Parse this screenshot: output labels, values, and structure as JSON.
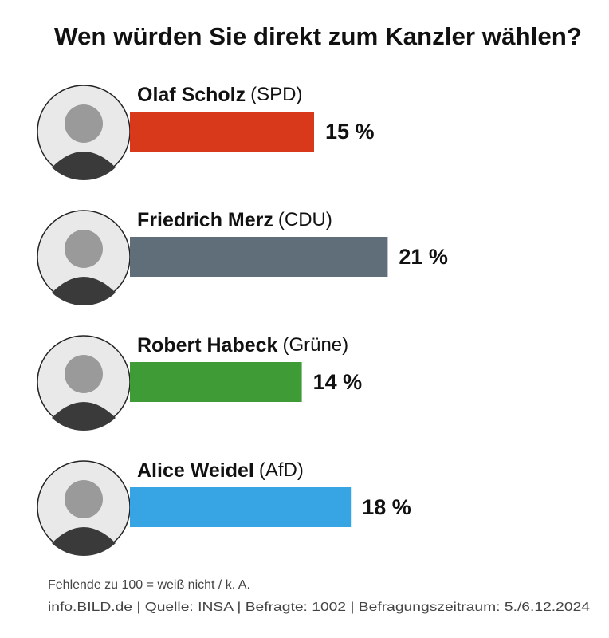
{
  "chart_data": {
    "type": "bar",
    "title": "Wen würden Sie direkt zum Kanzler wählen?",
    "categories": [
      "Olaf Scholz",
      "Friedrich Merz",
      "Robert Habeck",
      "Alice Weidel"
    ],
    "parties": [
      "(SPD)",
      "(CDU)",
      "(Grüne)",
      "(AfD)"
    ],
    "values": [
      15,
      21,
      14,
      18
    ],
    "value_labels": [
      "15 %",
      "21 %",
      "14 %",
      "18 %"
    ],
    "colors": [
      "#d8391b",
      "#5f6e78",
      "#3f9b35",
      "#37a4e3"
    ],
    "notes": [
      "Fehlende zu 100 = weiß nicht / k. A.",
      "info.BILD.de | Quelle: INSA | Befragte: 1002 | Befragungszeitraum: 5./6.12.2024"
    ]
  }
}
